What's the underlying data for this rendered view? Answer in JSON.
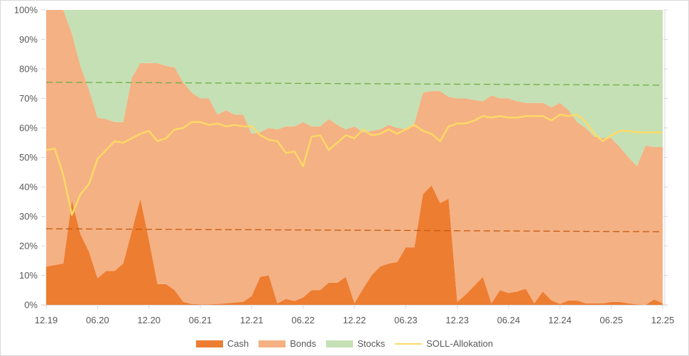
{
  "chart_data": {
    "type": "area",
    "title": "",
    "xlabel": "",
    "ylabel": "",
    "ylim": [
      0,
      100
    ],
    "yticks": [
      "0%",
      "10%",
      "20%",
      "30%",
      "40%",
      "50%",
      "60%",
      "70%",
      "80%",
      "90%",
      "100%"
    ],
    "xticks": [
      "12.19",
      "06.20",
      "12.20",
      "06.21",
      "12.21",
      "06.22",
      "12.22",
      "06.23",
      "12.23",
      "06.24",
      "12.24",
      "06.25",
      "12.25"
    ],
    "grid": false,
    "legend_position": "bottom",
    "stacked": true,
    "x_points": 73,
    "series": [
      {
        "name": "Cash",
        "type": "area",
        "color": "#ED7D31",
        "values": [
          13,
          13.5,
          14,
          35.5,
          24,
          18,
          9,
          11.5,
          11.5,
          14,
          25,
          36,
          22,
          7,
          7,
          5,
          1,
          0.3,
          0.2,
          0.2,
          0.3,
          0.5,
          0.8,
          1,
          3,
          9.5,
          10,
          0.5,
          2,
          1.3,
          2.5,
          5,
          5,
          7.5,
          7.5,
          9.5,
          0.5,
          5.5,
          10,
          13,
          14,
          14.5,
          19.5,
          19.5,
          37.5,
          40.5,
          34.5,
          36,
          1,
          3.5,
          6.5,
          9.5,
          0.5,
          5,
          4,
          4.5,
          5.5,
          0.5,
          4.5,
          1.5,
          0.3,
          1.5,
          1.5,
          0.5,
          0.5,
          0.5,
          1,
          1,
          0.5,
          0.2,
          0,
          1.8,
          0.5
        ]
      },
      {
        "name": "Bonds",
        "type": "area",
        "color": "#F4B183",
        "values": [
          87,
          86.5,
          86,
          56.5,
          57,
          55,
          54.5,
          51.5,
          50.5,
          48,
          52,
          46,
          60,
          75,
          74,
          75.5,
          74.5,
          71.7,
          69.8,
          69.8,
          64.2,
          65.5,
          63.7,
          63.5,
          55,
          49,
          50,
          59,
          58.5,
          59.2,
          59.5,
          55.5,
          55.5,
          55.5,
          53.5,
          50,
          60,
          53,
          49,
          46.5,
          47,
          45.5,
          40,
          42,
          34.5,
          32,
          38,
          34.5,
          69,
          66.5,
          63,
          59.5,
          70.5,
          65,
          66,
          64.5,
          63,
          68,
          64,
          65.5,
          68.2,
          64.5,
          60.5,
          59.5,
          56.5,
          56,
          55.5,
          52.5,
          49.5,
          46.8,
          54,
          51.7,
          53
        ]
      },
      {
        "name": "Stocks",
        "type": "area",
        "color": "#C5E0B4",
        "values": [
          0,
          0,
          0,
          8,
          19,
          27,
          36.5,
          37,
          38,
          38,
          23,
          18,
          18,
          18,
          19,
          19.5,
          24.5,
          28,
          30,
          30,
          35.5,
          34,
          35.5,
          35.5,
          42,
          41.5,
          40,
          40.5,
          39.5,
          39.5,
          38,
          39.5,
          39.5,
          37,
          39,
          40.5,
          39.5,
          41.5,
          41,
          40.5,
          39,
          40,
          40.5,
          38.5,
          28,
          27.5,
          27.5,
          29.5,
          30,
          30,
          30.5,
          31,
          29,
          30,
          30,
          31,
          31.5,
          31.5,
          31.5,
          33,
          31.5,
          34,
          38,
          40,
          43,
          43.5,
          43.5,
          46.5,
          50,
          53,
          46,
          46.5,
          46.5
        ]
      },
      {
        "name": "SOLL-Allokation",
        "type": "line",
        "color": "#FFD966",
        "values": [
          52.5,
          53,
          44,
          30.5,
          37.5,
          41,
          49.5,
          52.5,
          55.5,
          55,
          56.5,
          58,
          59,
          55.5,
          56.5,
          59.5,
          60,
          62,
          62,
          61,
          61.5,
          60.5,
          61,
          60.5,
          60.5,
          57.5,
          56,
          55.5,
          51.5,
          52,
          47,
          57,
          57.5,
          52.5,
          55,
          57.5,
          56.5,
          59.5,
          57.5,
          58,
          59.5,
          58,
          59.5,
          61,
          59,
          58,
          55.5,
          60.5,
          61.5,
          61.5,
          62.5,
          64,
          63.5,
          64,
          63.5,
          63.5,
          64,
          64,
          64,
          62.5,
          64.5,
          64,
          64.5,
          62,
          58,
          55.5,
          57.5,
          59,
          59,
          58.5,
          58.5,
          58.5,
          58.5
        ]
      }
    ],
    "reference_lines": [
      {
        "name": "stocks-target-trend",
        "color": "#70AD47",
        "style": "dashed",
        "start": 75.5,
        "end": 74.5
      },
      {
        "name": "cash-target-trend",
        "color": "#C55A11",
        "style": "dashed",
        "start": 25.8,
        "end": 24.8
      }
    ]
  },
  "legend": {
    "items": [
      {
        "label": "Cash",
        "kind": "box",
        "color": "#ED7D31"
      },
      {
        "label": "Bonds",
        "kind": "box",
        "color": "#F4B183"
      },
      {
        "label": "Stocks",
        "kind": "box",
        "color": "#C5E0B4"
      },
      {
        "label": "SOLL-Allokation",
        "kind": "line",
        "color": "#FFD966"
      }
    ]
  }
}
